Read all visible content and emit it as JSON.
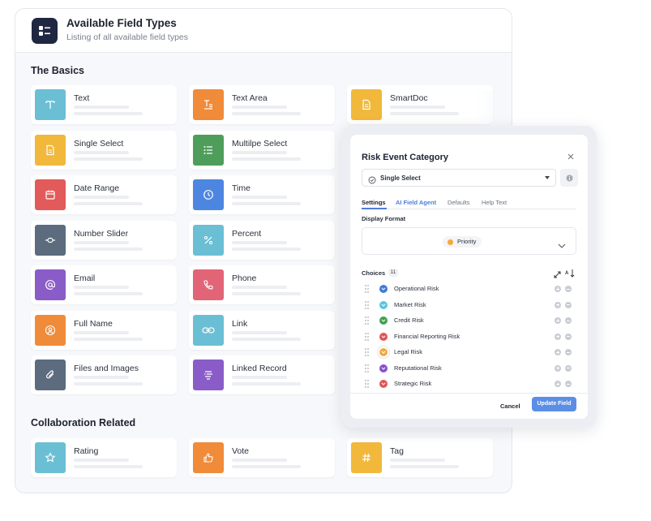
{
  "header": {
    "title": "Available Field Types",
    "subtitle": "Listing of all available field types"
  },
  "sections": {
    "basics": "The Basics",
    "collaboration": "Collaboration Related"
  },
  "fields": {
    "text": {
      "name": "Text",
      "color": "#6bbfd4",
      "icon": "text-icon"
    },
    "text_area": {
      "name": "Text Area",
      "color": "#f08b3a",
      "icon": "text-area-icon"
    },
    "smartdoc": {
      "name": "SmartDoc",
      "color": "#f1b83b",
      "icon": "document-icon"
    },
    "single_select": {
      "name": "Single Select",
      "color": "#f1b83b",
      "icon": "document-list-icon"
    },
    "multi_select": {
      "name": "Multilpe Select",
      "color": "#4f9d5b",
      "icon": "list-icon"
    },
    "date_range": {
      "name": "Date Range",
      "color": "#e25a5a",
      "icon": "calendar-icon"
    },
    "time": {
      "name": "Time",
      "color": "#4d86e0",
      "icon": "clock-icon"
    },
    "number_slider": {
      "name": "Number Slider",
      "color": "#5c6b7e",
      "icon": "slider-icon"
    },
    "percent": {
      "name": "Percent",
      "color": "#6bbfd4",
      "icon": "percent-icon"
    },
    "email": {
      "name": "Email",
      "color": "#8a5cc7",
      "icon": "at-icon"
    },
    "phone": {
      "name": "Phone",
      "color": "#e26577",
      "icon": "phone-icon"
    },
    "full_name": {
      "name": "Full Name",
      "color": "#f08b3a",
      "icon": "user-icon"
    },
    "link": {
      "name": "Link",
      "color": "#6bbfd4",
      "icon": "link-icon"
    },
    "files_images": {
      "name": "Files and Images",
      "color": "#5c6b7e",
      "icon": "paperclip-icon"
    },
    "linked_record": {
      "name": "Linked Record",
      "color": "#8a5cc7",
      "icon": "linked-record-icon"
    },
    "rating": {
      "name": "Rating",
      "color": "#6bbfd4",
      "icon": "star-icon"
    },
    "vote": {
      "name": "Vote",
      "color": "#f08b3a",
      "icon": "thumbs-up-icon"
    },
    "tag": {
      "name": "Tag",
      "color": "#f1b83b",
      "icon": "hash-icon"
    }
  },
  "modal": {
    "title": "Risk Event Category",
    "field_type": "Single Select",
    "tabs": [
      "Settings",
      "AI Field Agent",
      "Defaults",
      "Help Text"
    ],
    "display_format_label": "Display Format",
    "display_format_value": "Priority",
    "choices_label": "Choices",
    "choices_count": "11",
    "choices": [
      {
        "label": "Operational Risk",
        "color": "#3b7be0"
      },
      {
        "label": "Market Risk",
        "color": "#5cc4e0"
      },
      {
        "label": "Credit Risk",
        "color": "#3fa24e"
      },
      {
        "label": "Financial Reporting Risk",
        "color": "#e25454"
      },
      {
        "label": "Legal Risk",
        "color": "#f2ab3c"
      },
      {
        "label": "Reputational Risk",
        "color": "#8a4fd0"
      },
      {
        "label": "Strategic Risk",
        "color": "#e25454"
      }
    ],
    "cancel_label": "Cancel",
    "update_label": "Update Field"
  }
}
